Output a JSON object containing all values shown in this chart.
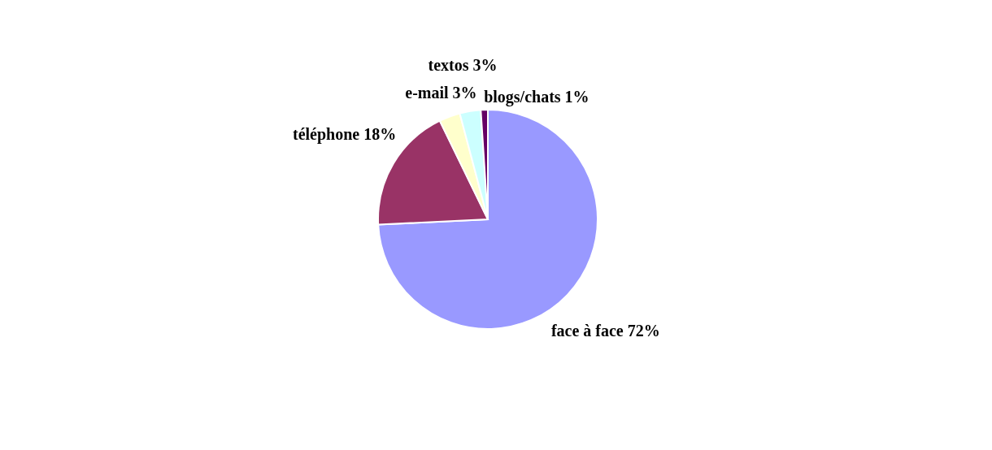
{
  "chart_data": {
    "type": "pie",
    "categories": [
      "face à face",
      "téléphone",
      "e-mail",
      "textos",
      "blogs/chats"
    ],
    "values": [
      72,
      18,
      3,
      3,
      1
    ],
    "value_labels": [
      "72%",
      "18%",
      "3%",
      "3%",
      "1%"
    ],
    "colors": [
      "#9999ff",
      "#993366",
      "#ffffcc",
      "#ccffff",
      "#660066"
    ]
  }
}
